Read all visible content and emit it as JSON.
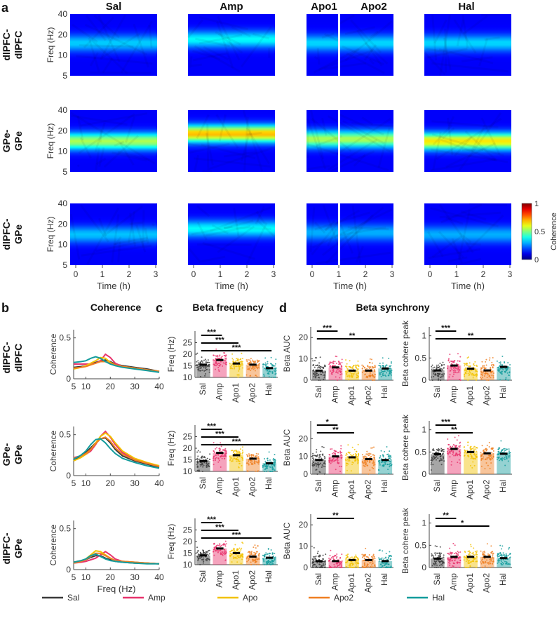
{
  "panel_labels": {
    "a": "a",
    "b": "b",
    "c": "c",
    "d": "d"
  },
  "section_titles": {
    "b": "Coherence",
    "c": "Beta frequency",
    "d": "Beta synchrony"
  },
  "conditions": {
    "sal": "Sal",
    "amp": "Amp",
    "apo1": "Apo1",
    "apo2": "Apo2",
    "hal": "Hal"
  },
  "rows": [
    {
      "line1": "dlPFC-",
      "line2": "dlPFC"
    },
    {
      "line1": "GPe-",
      "line2": "GPe"
    },
    {
      "line1": "dlPFC-",
      "line2": "GPe"
    }
  ],
  "colors": {
    "sal": "#3a3a3a",
    "amp": "#e8336d",
    "apo": "#f2c200",
    "apo2": "#ef7f22",
    "hal": "#139c9c"
  },
  "chart_data": [
    {
      "type": "heatmap",
      "panel": "a",
      "xlabel": "Time (h)",
      "ylabel": "Freq (Hz)",
      "xticks": [
        "0",
        "1",
        "2",
        "3"
      ],
      "yticks": [
        "5",
        "10",
        "20",
        "40"
      ],
      "xlim": [
        0,
        3
      ],
      "ylim": [
        5,
        40
      ],
      "colorbar": {
        "label": "Coherence",
        "ticks": [
          "0",
          "0.5",
          "1"
        ],
        "range": [
          0,
          1
        ],
        "colormap": "jet"
      },
      "columns": [
        "Sal",
        "Amp",
        "Apo1/Apo2",
        "Hal"
      ],
      "peak_frequency_hz": [
        [
          15,
          17,
          15,
          15
        ],
        [
          14,
          18,
          15,
          14
        ],
        [
          14,
          17,
          15,
          14
        ]
      ],
      "peak_coherence": [
        [
          0.33,
          0.38,
          0.34,
          0.34
        ],
        [
          0.55,
          0.7,
          0.55,
          0.65
        ],
        [
          0.32,
          0.38,
          0.3,
          0.3
        ]
      ]
    },
    {
      "type": "line",
      "panel": "b",
      "title": "Coherence",
      "xlabel": "Freq (Hz)",
      "ylabel": "Coherence",
      "xlim": [
        5,
        40
      ],
      "xticks": [
        "5",
        "10",
        "20",
        "30",
        "40"
      ],
      "ylim": [
        0,
        0.6
      ],
      "yticks": [
        "0",
        "0.5"
      ],
      "legend": [
        "Sal",
        "Amp",
        "Apo",
        "Apo2",
        "Hal"
      ],
      "x": [
        5,
        8,
        10,
        12,
        14,
        16,
        18,
        20,
        22,
        25,
        30,
        35,
        40
      ],
      "rows": [
        {
          "series": [
            {
              "name": "Sal",
              "values": [
                0.14,
                0.15,
                0.16,
                0.18,
                0.2,
                0.22,
                0.23,
                0.21,
                0.18,
                0.16,
                0.14,
                0.12,
                0.09
              ]
            },
            {
              "name": "Amp",
              "values": [
                0.18,
                0.18,
                0.18,
                0.18,
                0.19,
                0.22,
                0.3,
                0.26,
                0.19,
                0.15,
                0.13,
                0.11,
                0.08
              ]
            },
            {
              "name": "Apo",
              "values": [
                0.12,
                0.14,
                0.16,
                0.19,
                0.22,
                0.26,
                0.25,
                0.2,
                0.17,
                0.15,
                0.13,
                0.11,
                0.09
              ]
            },
            {
              "name": "Apo2",
              "values": [
                0.13,
                0.14,
                0.15,
                0.17,
                0.19,
                0.21,
                0.21,
                0.19,
                0.17,
                0.15,
                0.13,
                0.11,
                0.09
              ]
            },
            {
              "name": "Hal",
              "values": [
                0.2,
                0.21,
                0.22,
                0.25,
                0.27,
                0.25,
                0.21,
                0.18,
                0.16,
                0.14,
                0.12,
                0.1,
                0.08
              ]
            }
          ]
        },
        {
          "series": [
            {
              "name": "Sal",
              "values": [
                0.19,
                0.24,
                0.28,
                0.34,
                0.4,
                0.45,
                0.46,
                0.4,
                0.32,
                0.24,
                0.18,
                0.14,
                0.1
              ]
            },
            {
              "name": "Amp",
              "values": [
                0.22,
                0.24,
                0.26,
                0.3,
                0.38,
                0.48,
                0.54,
                0.47,
                0.38,
                0.28,
                0.2,
                0.15,
                0.12
              ]
            },
            {
              "name": "Apo",
              "values": [
                0.18,
                0.22,
                0.26,
                0.32,
                0.4,
                0.48,
                0.52,
                0.48,
                0.4,
                0.3,
                0.21,
                0.16,
                0.12
              ]
            },
            {
              "name": "Apo2",
              "values": [
                0.21,
                0.24,
                0.27,
                0.32,
                0.39,
                0.45,
                0.47,
                0.42,
                0.34,
                0.26,
                0.19,
                0.15,
                0.11
              ]
            },
            {
              "name": "Hal",
              "values": [
                0.2,
                0.25,
                0.3,
                0.38,
                0.44,
                0.45,
                0.4,
                0.33,
                0.27,
                0.21,
                0.16,
                0.12,
                0.09
              ]
            }
          ]
        },
        {
          "series": [
            {
              "name": "Sal",
              "values": [
                0.09,
                0.11,
                0.12,
                0.15,
                0.17,
                0.17,
                0.14,
                0.12,
                0.1,
                0.09,
                0.08,
                0.08,
                0.07
              ]
            },
            {
              "name": "Amp",
              "values": [
                0.08,
                0.09,
                0.1,
                0.12,
                0.14,
                0.18,
                0.22,
                0.18,
                0.13,
                0.1,
                0.09,
                0.08,
                0.07
              ]
            },
            {
              "name": "Apo",
              "values": [
                0.08,
                0.1,
                0.13,
                0.18,
                0.23,
                0.22,
                0.18,
                0.14,
                0.11,
                0.1,
                0.09,
                0.08,
                0.07
              ]
            },
            {
              "name": "Apo2",
              "values": [
                0.08,
                0.1,
                0.12,
                0.16,
                0.2,
                0.2,
                0.17,
                0.14,
                0.11,
                0.1,
                0.09,
                0.08,
                0.07
              ]
            },
            {
              "name": "Hal",
              "values": [
                0.09,
                0.11,
                0.13,
                0.17,
                0.19,
                0.16,
                0.13,
                0.11,
                0.1,
                0.09,
                0.08,
                0.07,
                0.07
              ]
            }
          ]
        }
      ]
    },
    {
      "type": "bar",
      "panel": "c",
      "title": "Beta frequency",
      "ylabel": "Freq (Hz)",
      "categories": [
        "Sal",
        "Amp",
        "Apo1",
        "Apo2",
        "Hal"
      ],
      "ylim": [
        10,
        30
      ],
      "yticks": [
        "10",
        "15",
        "20",
        "25"
      ],
      "rows": [
        {
          "values": [
            15.5,
            17.5,
            16.0,
            15.5,
            14.0
          ],
          "significance": [
            {
              "to": "Amp",
              "label": "***"
            },
            {
              "to": "Apo1",
              "label": "***"
            },
            {
              "to": "Hal",
              "label": "***"
            }
          ]
        },
        {
          "values": [
            14.5,
            18.0,
            17.0,
            15.5,
            13.5
          ],
          "significance": [
            {
              "to": "Amp",
              "label": "***"
            },
            {
              "to": "Apo1",
              "label": "***"
            },
            {
              "to": "Hal",
              "label": "***"
            }
          ]
        },
        {
          "values": [
            14.0,
            17.0,
            15.0,
            13.5,
            13.0
          ],
          "significance": [
            {
              "to": "Amp",
              "label": "***"
            },
            {
              "to": "Apo1",
              "label": "***"
            },
            {
              "to": "Hal",
              "label": "***"
            }
          ]
        }
      ]
    },
    {
      "type": "bar",
      "panel": "d-left",
      "title": "Beta synchrony",
      "ylabel": "Beta AUC",
      "categories": [
        "Sal",
        "Amp",
        "Apo1",
        "Apo2",
        "Hal"
      ],
      "yticks": [
        "0",
        "10",
        "20"
      ],
      "rows": [
        {
          "ylim": [
            0,
            25
          ],
          "values": [
            4.5,
            6.0,
            4.5,
            4.5,
            5.5
          ],
          "significance": [
            {
              "to": "Amp",
              "label": "***"
            },
            {
              "to": "Hal",
              "label": "**"
            }
          ]
        },
        {
          "ylim": [
            0,
            30
          ],
          "values": [
            8.0,
            10.0,
            9.5,
            8.5,
            8.0
          ],
          "significance": [
            {
              "to": "Amp",
              "label": "*"
            },
            {
              "to": "Apo1",
              "label": "**"
            }
          ]
        },
        {
          "ylim": [
            0,
            25
          ],
          "values": [
            3.0,
            3.0,
            3.5,
            3.5,
            3.0
          ],
          "significance": [
            {
              "to": "Apo1",
              "label": "**"
            }
          ]
        }
      ]
    },
    {
      "type": "bar",
      "panel": "d-right",
      "ylabel": "Beta cohere peak",
      "categories": [
        "Sal",
        "Amp",
        "Apo1",
        "Apo2",
        "Hal"
      ],
      "ylim": [
        0,
        1.2
      ],
      "yticks": [
        "0",
        "0.5",
        "1"
      ],
      "rows": [
        {
          "values": [
            0.22,
            0.33,
            0.26,
            0.22,
            0.3
          ],
          "significance": [
            {
              "to": "Amp",
              "label": "***"
            },
            {
              "to": "Hal",
              "label": "**"
            }
          ]
        },
        {
          "values": [
            0.45,
            0.57,
            0.5,
            0.47,
            0.46
          ],
          "significance": [
            {
              "to": "Amp",
              "label": "***"
            },
            {
              "to": "Apo1",
              "label": "**"
            }
          ]
        },
        {
          "values": [
            0.2,
            0.24,
            0.24,
            0.24,
            0.21
          ],
          "significance": [
            {
              "to": "Amp",
              "label": "**"
            },
            {
              "to": "Apo2",
              "label": "*"
            }
          ]
        }
      ]
    }
  ]
}
